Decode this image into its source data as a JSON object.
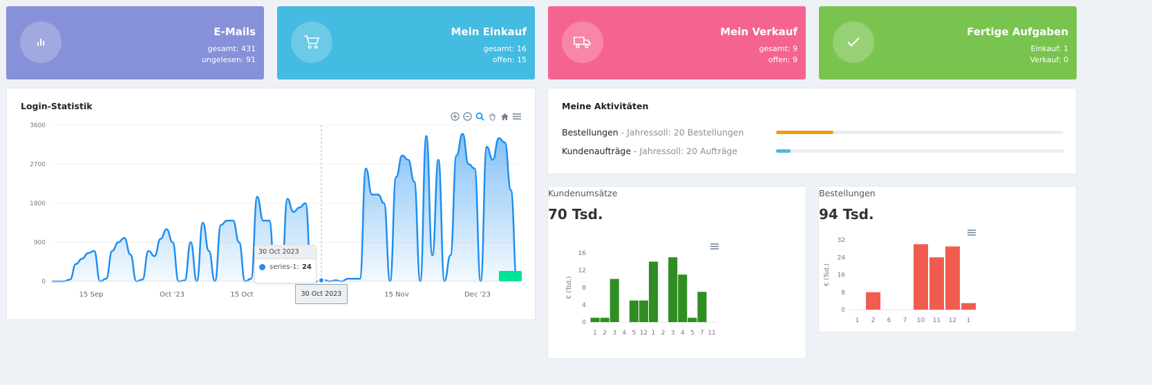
{
  "cards": [
    {
      "title": "E-Mails",
      "line1": "gesamt: 431",
      "line2": "ungelesen: 91",
      "icon": "bar-chart-icon",
      "color": "#8791d9"
    },
    {
      "title": "Mein Einkauf",
      "line1": "gesamt: 16",
      "line2": "offen: 15",
      "icon": "cart-icon",
      "color": "#44bbe0"
    },
    {
      "title": "Mein Verkauf",
      "line1": "gesamt: 9",
      "line2": "offen: 9",
      "icon": "truck-icon",
      "color": "#f56491"
    },
    {
      "title": "Fertige Aufgaben",
      "line1": "Einkauf: 1",
      "line2": "Verkauf: 0",
      "icon": "check-icon",
      "color": "#79c44f"
    }
  ],
  "login": {
    "title": "Login-Statistik",
    "tooltip_date": "30 Oct 2023",
    "tooltip_series": "series-1:",
    "tooltip_value": "24",
    "crosshair_label": "30 Oct 2023",
    "toolbar_icons": [
      "zoom-in-icon",
      "zoom-out-icon",
      "zoom-select-icon",
      "pan-icon",
      "home-icon",
      "menu-icon"
    ]
  },
  "activities": {
    "title": "Meine Aktivitäten",
    "items": [
      {
        "label": "Bestellungen",
        "sub": " - Jahressoll: 20 Bestellungen",
        "progress": 0.2,
        "color": "#f39c12"
      },
      {
        "label": "Kundenaufträge",
        "sub": " - Jahressoll: 20 Aufträge",
        "progress": 0.05,
        "color": "#44bbe0"
      }
    ]
  },
  "kunden": {
    "label": "Kundenumsätze",
    "value": "70 Tsd."
  },
  "bestellungen": {
    "label": "Bestellungen",
    "value": "94 Tsd."
  },
  "chart_data": [
    {
      "type": "area",
      "series": [
        {
          "name": "series-1",
          "color": "#1e8ef0"
        }
      ],
      "x_ticks": [
        "15 Sep",
        "Oct '23",
        "15 Oct",
        "30 Oct 2023",
        "15 Nov",
        "Dec '23"
      ],
      "y_ticks": [
        "0",
        "900",
        "1800",
        "2700",
        "3600"
      ],
      "ylim": [
        0,
        3600
      ],
      "y_points": [
        0,
        0,
        0,
        40,
        400,
        520,
        650,
        700,
        0,
        60,
        700,
        900,
        1000,
        620,
        0,
        40,
        700,
        580,
        980,
        1200,
        900,
        0,
        20,
        900,
        0,
        1350,
        700,
        0,
        1300,
        1400,
        1400,
        900,
        0,
        60,
        1950,
        1400,
        1400,
        0,
        0,
        1900,
        1600,
        1700,
        1800,
        0,
        0,
        30,
        0,
        24,
        0,
        60,
        60,
        60,
        2600,
        2000,
        2000,
        1800,
        0,
        2400,
        2900,
        2800,
        2300,
        0,
        3350,
        600,
        2800,
        0,
        600,
        2900,
        3400,
        2700,
        2600,
        0,
        3100,
        2800,
        3300,
        3200,
        2100,
        0
      ]
    },
    {
      "type": "bar",
      "categories": [
        "1",
        "2",
        "3",
        "4",
        "5",
        "12",
        "1",
        "2",
        "3",
        "4",
        "5",
        "7",
        "11"
      ],
      "values": [
        1,
        1,
        10,
        0,
        5,
        5,
        14,
        0,
        15,
        11,
        1,
        7,
        0
      ],
      "ylabel": "€ (Tsd.)",
      "y_ticks": [
        "0",
        "4",
        "8",
        "12",
        "16"
      ],
      "ylim": [
        0,
        16
      ],
      "color": "#2f8e22"
    },
    {
      "type": "bar",
      "categories": [
        "1",
        "2",
        "6",
        "7",
        "10",
        "11",
        "12",
        "1"
      ],
      "values": [
        0,
        8,
        0,
        0,
        30,
        24,
        29,
        3
      ],
      "ylabel": "€ (Tsd.)",
      "y_ticks": [
        "0",
        "8",
        "16",
        "24",
        "32"
      ],
      "ylim": [
        0,
        32
      ],
      "color": "#f25c50"
    }
  ]
}
